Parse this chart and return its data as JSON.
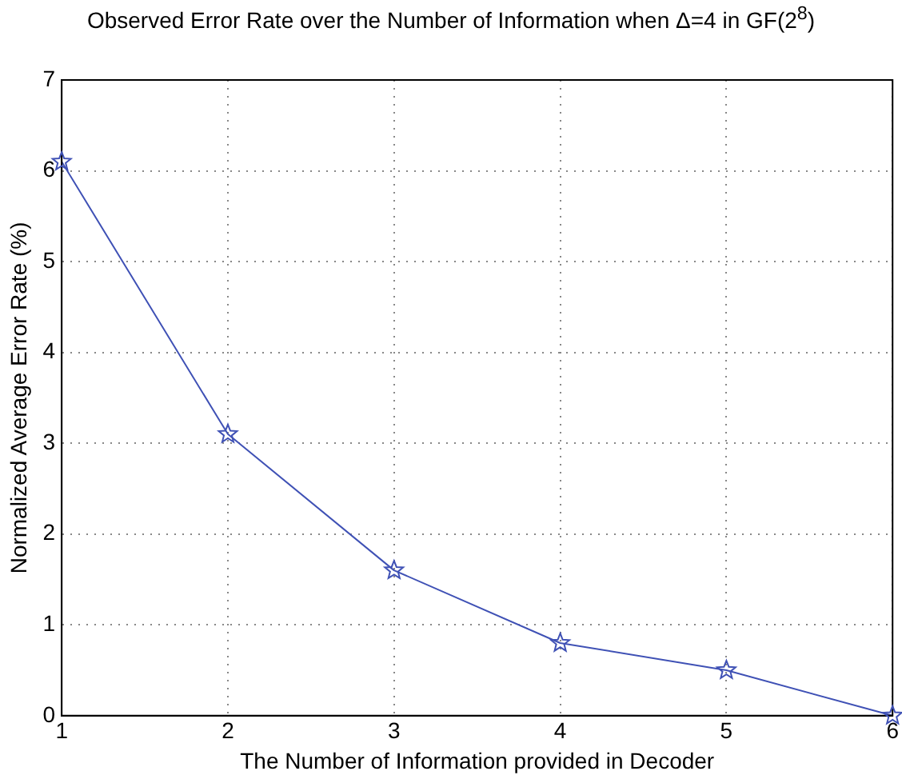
{
  "chart_data": {
    "type": "line",
    "title": "Observed Error Rate over the Number of Information when Δ=4 in GF(2$^{8}$)",
    "xlabel": "The Number of Information provided in Decoder",
    "ylabel": "Normalized Average Error Rate (%)",
    "x": [
      1,
      2,
      3,
      4,
      5,
      6
    ],
    "series": [
      {
        "color": "#3f51b5",
        "values": [
          6.1,
          3.1,
          1.6,
          0.8,
          0.5,
          0
        ]
      }
    ],
    "xlim": [
      1,
      6
    ],
    "xticks": [
      1,
      2,
      3,
      4,
      5,
      6
    ],
    "ylim": [
      0,
      7
    ],
    "yticks": [
      0,
      1,
      2,
      3,
      4,
      5,
      6,
      7
    ],
    "grid": true,
    "marker": "star",
    "line_style": "solid",
    "legend": false
  }
}
